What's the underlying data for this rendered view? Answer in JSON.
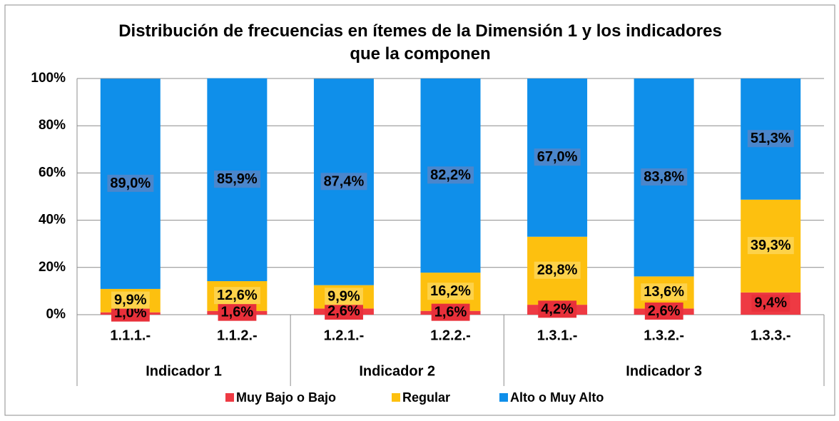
{
  "chart_data": {
    "type": "stacked_bar",
    "title": "Distribución de frecuencias en ítemes de la Dimensión 1 y los indicadores que la componen",
    "groups": [
      {
        "label": "Indicador 1",
        "categories": [
          "1.1.1.-",
          "1.1.2.-"
        ]
      },
      {
        "label": "Indicador 2",
        "categories": [
          "1.2.1.-",
          "1.2.2.-"
        ]
      },
      {
        "label": "Indicador 3",
        "categories": [
          "1.3.1.-",
          "1.3.2.-",
          "1.3.3.-"
        ]
      }
    ],
    "series": [
      {
        "name": "Muy Bajo o Bajo",
        "color": "#ee3a43",
        "label_bg": "#e8303a",
        "values": [
          1.0,
          1.6,
          2.6,
          1.6,
          4.2,
          2.6,
          9.4
        ],
        "value_labels": [
          "1,0%",
          "1,6%",
          "2,6%",
          "1,6%",
          "4,2%",
          "2,6%",
          "9,4%"
        ]
      },
      {
        "name": "Regular",
        "color": "#fdc00f",
        "label_bg": "#fdd24a",
        "values": [
          9.9,
          12.6,
          9.9,
          16.2,
          28.8,
          13.6,
          39.3
        ],
        "value_labels": [
          "9,9%",
          "12,6%",
          "9,9%",
          "16,2%",
          "28,8%",
          "13,6%",
          "39,3%"
        ]
      },
      {
        "name": "Alto o Muy Alto",
        "color": "#0f8fea",
        "label_bg": "#4a86cc",
        "values": [
          89.0,
          85.9,
          87.4,
          82.2,
          67.0,
          83.8,
          51.3
        ],
        "value_labels": [
          "89,0%",
          "85,9%",
          "87,4%",
          "82,2%",
          "67,0%",
          "83,8%",
          "51,3%"
        ]
      }
    ],
    "ylim": [
      0,
      100
    ],
    "yticks": [
      {
        "value": 0,
        "label": "0%"
      },
      {
        "value": 20,
        "label": "20%"
      },
      {
        "value": 40,
        "label": "40%"
      },
      {
        "value": 60,
        "label": "60%"
      },
      {
        "value": 80,
        "label": "80%"
      },
      {
        "value": 100,
        "label": "100%"
      }
    ],
    "grid": true,
    "legend": "bottom"
  }
}
